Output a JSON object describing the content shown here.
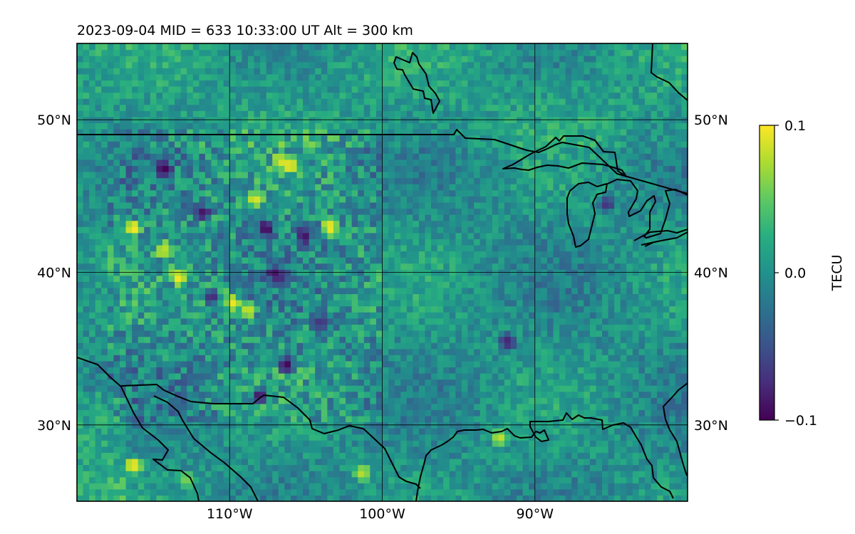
{
  "figure": {
    "title": "2023-09-04  MID = 633    10:33:00  UT  Alt = 300 km"
  },
  "chart_data": {
    "type": "heatmap",
    "title": "2023-09-04  MID = 633    10:33:00  UT  Alt = 300 km",
    "xlabel": "",
    "ylabel": "",
    "projection": "PlateCarree",
    "extent": {
      "lon": [
        -120,
        -80
      ],
      "lat": [
        25,
        55
      ]
    },
    "xticks": [
      {
        "value": -110,
        "label": "110°W"
      },
      {
        "value": -100,
        "label": "100°W"
      },
      {
        "value": -90,
        "label": "90°W"
      }
    ],
    "yticks": [
      {
        "value": 30,
        "label": "30°N"
      },
      {
        "value": 40,
        "label": "40°N"
      },
      {
        "value": 50,
        "label": "50°N"
      }
    ],
    "grid": true,
    "colormap": "viridis",
    "colorbar": {
      "label": "TECU",
      "range": [
        -0.1,
        0.1
      ],
      "ticks": [
        {
          "value": 0.1,
          "label": "0.1"
        },
        {
          "value": 0.0,
          "label": "0.0"
        },
        {
          "value": -0.1,
          "label": "−0.1"
        }
      ]
    },
    "cell_size_deg": 0.4,
    "background_level_tecu": 0.0,
    "hotspots_tecu": [
      {
        "lon": -116.5,
        "lat": 42.7,
        "value": 0.1
      },
      {
        "lon": -113.5,
        "lat": 39.5,
        "value": 0.1
      },
      {
        "lon": -111.0,
        "lat": 38.5,
        "value": 0.1
      },
      {
        "lon": -110.0,
        "lat": 37.8,
        "value": 0.095
      },
      {
        "lon": -109.0,
        "lat": 37.3,
        "value": 0.09
      },
      {
        "lon": -106.2,
        "lat": 46.8,
        "value": 0.1
      },
      {
        "lon": -106.8,
        "lat": 47.1,
        "value": 0.09
      },
      {
        "lon": -103.6,
        "lat": 42.8,
        "value": 0.1
      },
      {
        "lon": -108.5,
        "lat": 44.6,
        "value": 0.09
      },
      {
        "lon": -114.5,
        "lat": 41.3,
        "value": 0.08
      },
      {
        "lon": -116.5,
        "lat": 27.2,
        "value": 0.1
      },
      {
        "lon": -101.5,
        "lat": 26.7,
        "value": 0.08
      },
      {
        "lon": -92.5,
        "lat": 29.0,
        "value": 0.08
      },
      {
        "lon": -113.0,
        "lat": 26.2,
        "value": 0.06
      },
      {
        "lon": -118.5,
        "lat": 30.1,
        "value": 0.04
      },
      {
        "lon": -114.5,
        "lat": 46.6,
        "value": -0.1
      },
      {
        "lon": -112.0,
        "lat": 43.7,
        "value": -0.09
      },
      {
        "lon": -107.8,
        "lat": 42.7,
        "value": -0.1
      },
      {
        "lon": -106.5,
        "lat": 33.7,
        "value": -0.1
      },
      {
        "lon": -105.3,
        "lat": 42.2,
        "value": -0.09
      },
      {
        "lon": -108.2,
        "lat": 31.7,
        "value": -0.09
      },
      {
        "lon": -107.2,
        "lat": 39.7,
        "value": -0.09
      },
      {
        "lon": -111.3,
        "lat": 38.3,
        "value": -0.08
      },
      {
        "lon": -92.0,
        "lat": 35.3,
        "value": -0.08
      },
      {
        "lon": -85.5,
        "lat": 44.3,
        "value": -0.07
      },
      {
        "lon": -104.2,
        "lat": 36.5,
        "value": -0.07
      }
    ],
    "features": [
      "coastlines",
      "country-borders",
      "great-lakes"
    ]
  }
}
